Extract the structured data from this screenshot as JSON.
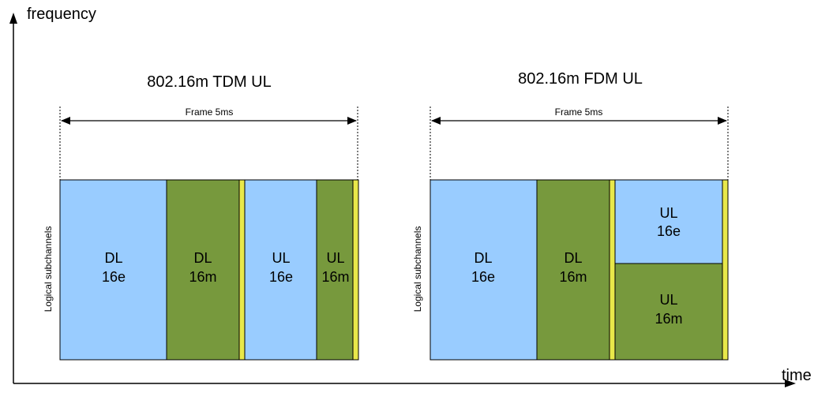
{
  "axes": {
    "y_label": "frequency",
    "x_label": "time"
  },
  "diagrams": [
    {
      "title": "802.16m TDM UL",
      "frame_label": "Frame 5ms",
      "side_label": "Logical subchannels",
      "blocks": [
        {
          "line1": "DL",
          "line2": "16e",
          "color": "#99ccff"
        },
        {
          "line1": "DL",
          "line2": "16m",
          "color": "#77993d"
        },
        {
          "line1": "",
          "line2": "",
          "color": "#e8e84a"
        },
        {
          "line1": "UL",
          "line2": "16e",
          "color": "#99ccff"
        },
        {
          "line1": "UL",
          "line2": "16m",
          "color": "#77993d"
        },
        {
          "line1": "",
          "line2": "",
          "color": "#e8e84a"
        }
      ]
    },
    {
      "title": "802.16m FDM UL",
      "frame_label": "Frame 5ms",
      "side_label": "Logical subchannels",
      "blocks": [
        {
          "line1": "DL",
          "line2": "16e",
          "color": "#99ccff"
        },
        {
          "line1": "DL",
          "line2": "16m",
          "color": "#77993d"
        },
        {
          "line1": "",
          "line2": "",
          "color": "#e8e84a"
        },
        {
          "line1": "UL",
          "line2": "16e",
          "color": "#99ccff"
        },
        {
          "line1": "UL",
          "line2": "16m",
          "color": "#77993d"
        },
        {
          "line1": "",
          "line2": "",
          "color": "#e8e84a"
        }
      ]
    }
  ]
}
